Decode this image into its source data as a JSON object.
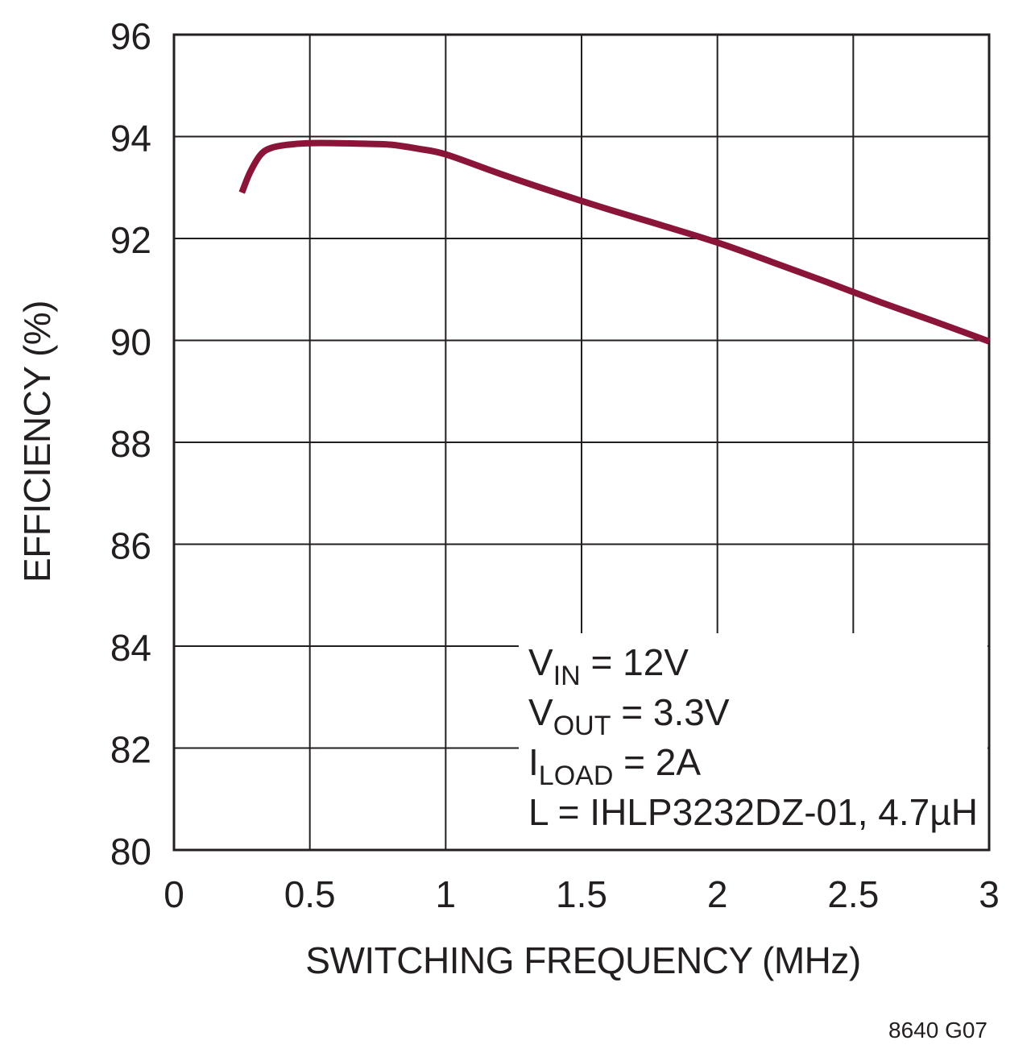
{
  "chart_data": {
    "type": "line",
    "xlabel": "SWITCHING FREQUENCY (MHz)",
    "ylabel": "EFFICIENCY (%)",
    "xlim": [
      0,
      3
    ],
    "ylim": [
      80,
      96
    ],
    "x_ticks": [
      "0",
      "0.5",
      "1",
      "1.5",
      "2",
      "2.5",
      "3"
    ],
    "y_ticks": [
      "80",
      "82",
      "84",
      "86",
      "88",
      "90",
      "92",
      "94",
      "96"
    ],
    "grid": true,
    "line_color": "#8b1538",
    "series": [
      {
        "x": [
          0.25,
          0.28,
          0.32,
          0.36,
          0.42,
          0.5,
          0.6,
          0.7,
          0.8,
          0.9,
          1.0,
          1.2,
          1.4,
          1.6,
          1.8,
          2.0,
          2.2,
          2.4,
          2.6,
          2.8,
          3.0
        ],
        "y": [
          92.9,
          93.3,
          93.65,
          93.78,
          93.84,
          93.87,
          93.87,
          93.86,
          93.84,
          93.76,
          93.65,
          93.27,
          92.91,
          92.57,
          92.25,
          91.92,
          91.54,
          91.15,
          90.75,
          90.37,
          89.98
        ]
      }
    ],
    "conditions": [
      {
        "main": "V",
        "sub": "IN",
        "rest": " = 12V"
      },
      {
        "main": "V",
        "sub": "OUT",
        "rest": " = 3.3V"
      },
      {
        "main": "I",
        "sub": "LOAD",
        "rest": " = 2A"
      },
      {
        "main": "L = IHLP3232DZ-01, 4.7µH",
        "sub": "",
        "rest": ""
      }
    ],
    "figure_id": "8640 G07"
  }
}
